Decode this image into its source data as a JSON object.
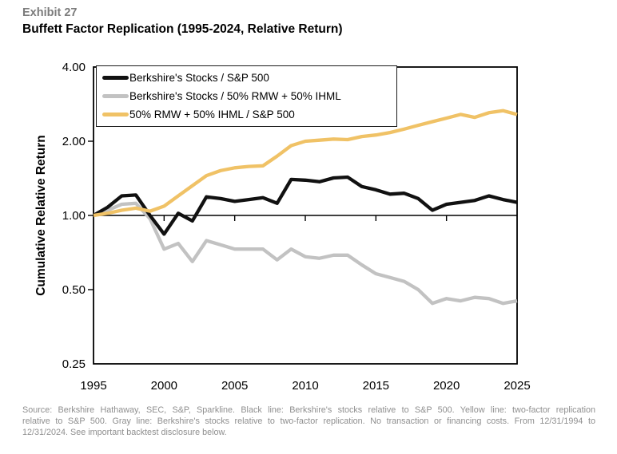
{
  "header": {
    "exhibit_label": "Exhibit 27",
    "title": "Buffett Factor Replication (1995-2024, Relative Return)"
  },
  "chart_data": {
    "type": "line",
    "title": "Buffett Factor Replication (1995-2024, Relative Return)",
    "xlabel": "",
    "ylabel": "Cumulative Relative Return",
    "y_scale": "log",
    "ylim": [
      0.25,
      4.0
    ],
    "gridline_at": 1.0,
    "grid": false,
    "legend_position": "top-left",
    "x_tick_labels": [
      "1995",
      "2000",
      "2005",
      "2010",
      "2015",
      "2020",
      "2025"
    ],
    "y_tick_labels": [
      "4.00",
      "2.00",
      "1.00",
      "0.50",
      "0.25"
    ],
    "y_tick_values": [
      4.0,
      2.0,
      1.0,
      0.5,
      0.25
    ],
    "x": [
      1995,
      1996,
      1997,
      1998,
      1999,
      2000,
      2001,
      2002,
      2003,
      2004,
      2005,
      2006,
      2007,
      2008,
      2009,
      2010,
      2011,
      2012,
      2013,
      2014,
      2015,
      2016,
      2017,
      2018,
      2019,
      2020,
      2021,
      2022,
      2023,
      2024,
      2025
    ],
    "series": [
      {
        "name": "Berkshire's Stocks / S&P 500",
        "color": "#111111",
        "values": [
          1.0,
          1.08,
          1.2,
          1.21,
          1.0,
          0.84,
          1.02,
          0.95,
          1.19,
          1.17,
          1.14,
          1.16,
          1.18,
          1.12,
          1.4,
          1.39,
          1.37,
          1.42,
          1.43,
          1.31,
          1.27,
          1.22,
          1.23,
          1.17,
          1.05,
          1.11,
          1.13,
          1.15,
          1.2,
          1.16,
          1.13
        ]
      },
      {
        "name": "Berkshire's Stocks / 50% RMW + 50% IHML",
        "color": "#c2c2c2",
        "values": [
          1.0,
          1.05,
          1.11,
          1.12,
          0.97,
          0.73,
          0.77,
          0.65,
          0.79,
          0.76,
          0.73,
          0.73,
          0.73,
          0.66,
          0.73,
          0.68,
          0.67,
          0.69,
          0.69,
          0.63,
          0.58,
          0.56,
          0.54,
          0.5,
          0.44,
          0.46,
          0.45,
          0.465,
          0.46,
          0.44,
          0.45
        ]
      },
      {
        "name": "50% RMW + 50% IHML / S&P 500",
        "color": "#f0c266",
        "values": [
          1.0,
          1.02,
          1.05,
          1.07,
          1.04,
          1.09,
          1.2,
          1.32,
          1.45,
          1.52,
          1.56,
          1.58,
          1.59,
          1.74,
          1.92,
          2.0,
          2.02,
          2.04,
          2.03,
          2.09,
          2.12,
          2.17,
          2.24,
          2.32,
          2.4,
          2.48,
          2.57,
          2.5,
          2.61,
          2.66,
          2.57
        ]
      }
    ]
  },
  "footer": {
    "lines": [
      "Source: Berkshire Hathaway, SEC, S&P, Sparkline. Black line: Berkshire's stocks relative to S&P 500. Yellow line: two-factor replication",
      "relative to S&P 500. Gray line: Berkshire's stocks relative to two-factor replication. No transaction or financing costs. From 12/31/1994 to",
      "12/31/2024. See important backtest disclosure below."
    ]
  }
}
